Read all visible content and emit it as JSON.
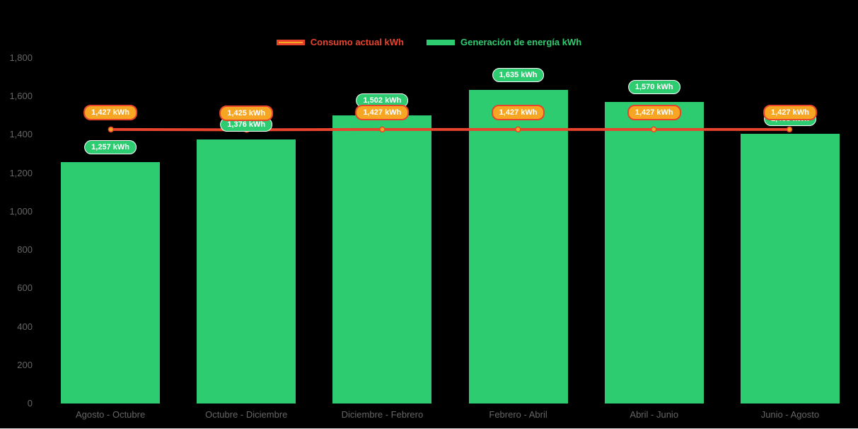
{
  "colors": {
    "background": "#000000",
    "bar_green": "#2ecc71",
    "line_red": "#e8432d",
    "marker_orange": "#f6a623",
    "axis_text": "#666666",
    "value_label_text": "#ffffff"
  },
  "legend": {
    "consumption": {
      "label": "Consumo actual kWh"
    },
    "generation": {
      "label": "Generación de energía kWh"
    }
  },
  "chart_data": {
    "type": "bar",
    "title": "",
    "categories": [
      "Agosto - Octubre",
      "Octubre - Diciembre",
      "Diciembre - Febrero",
      "Febrero - Abril",
      "Abril - Junio",
      "Junio - Agosto"
    ],
    "series": [
      {
        "name": "Generación de energía kWh",
        "type": "bar",
        "color": "#2ecc71",
        "values": [
          1257,
          1376,
          1502,
          1635,
          1570,
          1405
        ],
        "point_labels": [
          "1,257 kWh",
          "1,376 kWh",
          "1,502 kWh",
          "1,635 kWh",
          "1,570 kWh",
          "1,405 kWh"
        ]
      },
      {
        "name": "Consumo actual kWh",
        "type": "line",
        "color": "#e8432d",
        "marker_color": "#f6a623",
        "values": [
          1427,
          1425,
          1427,
          1427,
          1427,
          1427
        ],
        "point_labels": [
          "1,427 kWh",
          "1,425 kWh",
          "1,427 kWh",
          "1,427 kWh",
          "1,427 kWh",
          "1,427 kWh"
        ]
      }
    ],
    "xlabel": "",
    "ylabel": "",
    "ylim": [
      0,
      1800
    ],
    "yticks": [
      0,
      200,
      400,
      600,
      800,
      1000,
      1200,
      1400,
      1600,
      1800
    ],
    "ytick_labels": [
      "0",
      "200",
      "400",
      "600",
      "800",
      "1,000",
      "1,200",
      "1,400",
      "1,600",
      "1,800"
    ],
    "grid": false,
    "legend_position": "top"
  }
}
